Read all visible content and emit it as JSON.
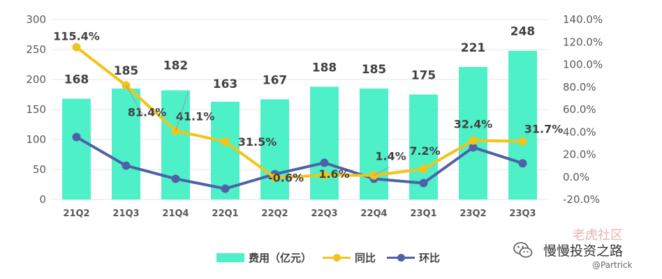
{
  "chart_data": {
    "type": "bar",
    "categories": [
      "21Q2",
      "21Q3",
      "21Q4",
      "22Q1",
      "22Q2",
      "22Q3",
      "22Q4",
      "23Q1",
      "23Q2",
      "23Q3"
    ],
    "series": [
      {
        "name": "费用（亿元）",
        "type": "bar",
        "axis": "left",
        "values": [
          168,
          185,
          182,
          163,
          167,
          188,
          185,
          175,
          221,
          248
        ],
        "labels": [
          "168",
          "185",
          "182",
          "163",
          "167",
          "188",
          "185",
          "175",
          "221",
          "248"
        ]
      },
      {
        "name": "同比",
        "type": "line",
        "axis": "right",
        "values": [
          115.4,
          81.4,
          41.1,
          31.5,
          -0.6,
          1.6,
          1.4,
          7.2,
          32.4,
          31.7
        ],
        "labels": [
          "115.4%",
          "81.4%",
          "41.1%",
          "31.5%",
          "-0.6%",
          "1.6%",
          "1.4%",
          "7.2%",
          "32.4%",
          "31.7%"
        ]
      },
      {
        "name": "环比",
        "type": "line",
        "axis": "right",
        "values": [
          35.5,
          10.1,
          -1.6,
          -10.4,
          2.5,
          12.6,
          -1.6,
          -5.4,
          26.3,
          12.2
        ]
      }
    ],
    "ylim_left": [
      0,
      300
    ],
    "yticks_left": [
      "0",
      "50",
      "100",
      "150",
      "200",
      "250",
      "300"
    ],
    "ylim_right": [
      -20,
      140
    ],
    "yticks_right": [
      "-20.0%",
      "0.0%",
      "20.0%",
      "40.0%",
      "60.0%",
      "80.0%",
      "100.0%",
      "120.0%",
      "140.0%"
    ],
    "grid": true,
    "legend": "bottom",
    "colors": {
      "bar": "#4ef0c8",
      "yoy": "#f2c318",
      "qoq": "#4f62a8"
    }
  },
  "watermark": {
    "main": "慢慢投资之路",
    "faint": "老虎社区",
    "sub": "@Partrick"
  }
}
